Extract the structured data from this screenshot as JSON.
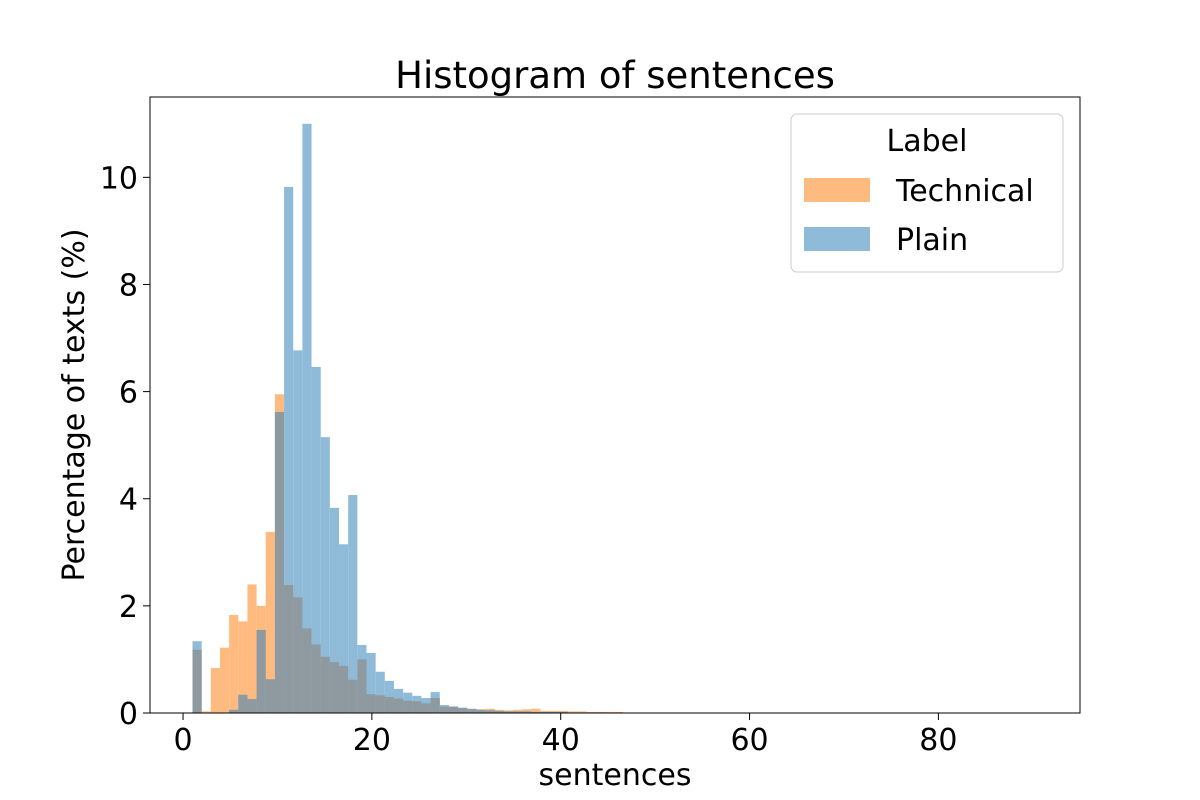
{
  "chart_data": {
    "type": "bar",
    "title": "Histogram of sentences",
    "xlabel": "sentences",
    "ylabel": "Percentage of texts (%)",
    "xlim": [
      -3.5,
      95
    ],
    "ylim": [
      0,
      11.5
    ],
    "x_ticks": [
      "0",
      "20",
      "40",
      "60",
      "80"
    ],
    "y_ticks": [
      "0",
      "2",
      "4",
      "6",
      "8",
      "10"
    ],
    "bin_width": 0.97,
    "legend": {
      "title": "Label",
      "placement": "top-right",
      "entries": [
        "Technical",
        "Plain"
      ]
    },
    "colors": {
      "Technical": "#ffbb7f",
      "Plain": "#8fbbd9",
      "overlap": "#8f9aa0"
    },
    "series": [
      {
        "name": "Technical",
        "bin_starts": [
          1.0,
          1.97,
          2.94,
          3.91,
          4.88,
          5.85,
          6.82,
          7.79,
          8.76,
          9.73,
          10.7,
          11.67,
          12.64,
          13.61,
          14.58,
          15.55,
          16.52,
          17.49,
          18.46,
          19.43,
          20.4,
          21.37,
          22.34,
          23.31,
          24.28,
          25.25,
          26.22,
          27.19,
          28.16,
          29.13,
          30.1,
          31.07,
          32.04,
          33.01,
          33.98,
          34.95,
          35.92,
          36.89,
          37.86,
          38.83,
          39.8,
          40.77,
          41.74,
          42.71,
          43.68,
          44.65,
          45.62
        ],
        "values": [
          1.18,
          0.03,
          0.84,
          1.22,
          1.83,
          1.71,
          2.4,
          2.0,
          3.38,
          5.95,
          2.39,
          2.16,
          1.58,
          1.28,
          1.05,
          0.95,
          0.88,
          0.62,
          1.0,
          0.35,
          0.33,
          0.3,
          0.27,
          0.23,
          0.22,
          0.18,
          0.28,
          0.12,
          0.12,
          0.09,
          0.07,
          0.07,
          0.08,
          0.06,
          0.05,
          0.06,
          0.07,
          0.08,
          0.04,
          0.04,
          0.04,
          0.03,
          0.03,
          0.02,
          0.02,
          0.02,
          0.02
        ]
      },
      {
        "name": "Plain",
        "bin_starts": [
          1.0,
          1.97,
          2.94,
          3.91,
          4.88,
          5.85,
          6.82,
          7.79,
          8.76,
          9.73,
          10.7,
          11.67,
          12.64,
          13.61,
          14.58,
          15.55,
          16.52,
          17.49,
          18.46,
          19.43,
          20.4,
          21.37,
          22.34,
          23.31,
          24.28,
          25.25,
          26.22,
          27.19,
          28.16,
          29.13,
          30.1,
          31.07,
          32.04,
          33.01,
          33.98,
          34.95,
          35.92,
          36.89,
          37.86,
          38.83,
          39.8,
          40.77,
          41.74,
          42.71,
          43.68
        ],
        "values": [
          1.34,
          0.0,
          0.0,
          0.0,
          0.06,
          0.34,
          0.26,
          1.55,
          0.63,
          5.62,
          9.82,
          6.77,
          11.0,
          6.46,
          5.15,
          3.83,
          3.15,
          4.07,
          1.27,
          1.12,
          0.77,
          0.6,
          0.45,
          0.38,
          0.32,
          0.28,
          0.39,
          0.15,
          0.12,
          0.1,
          0.08,
          0.06,
          0.05,
          0.04,
          0.03,
          0.03,
          0.03,
          0.02,
          0.02,
          0.02,
          0.02,
          0.01,
          0.01,
          0.01,
          0.01
        ]
      }
    ]
  }
}
